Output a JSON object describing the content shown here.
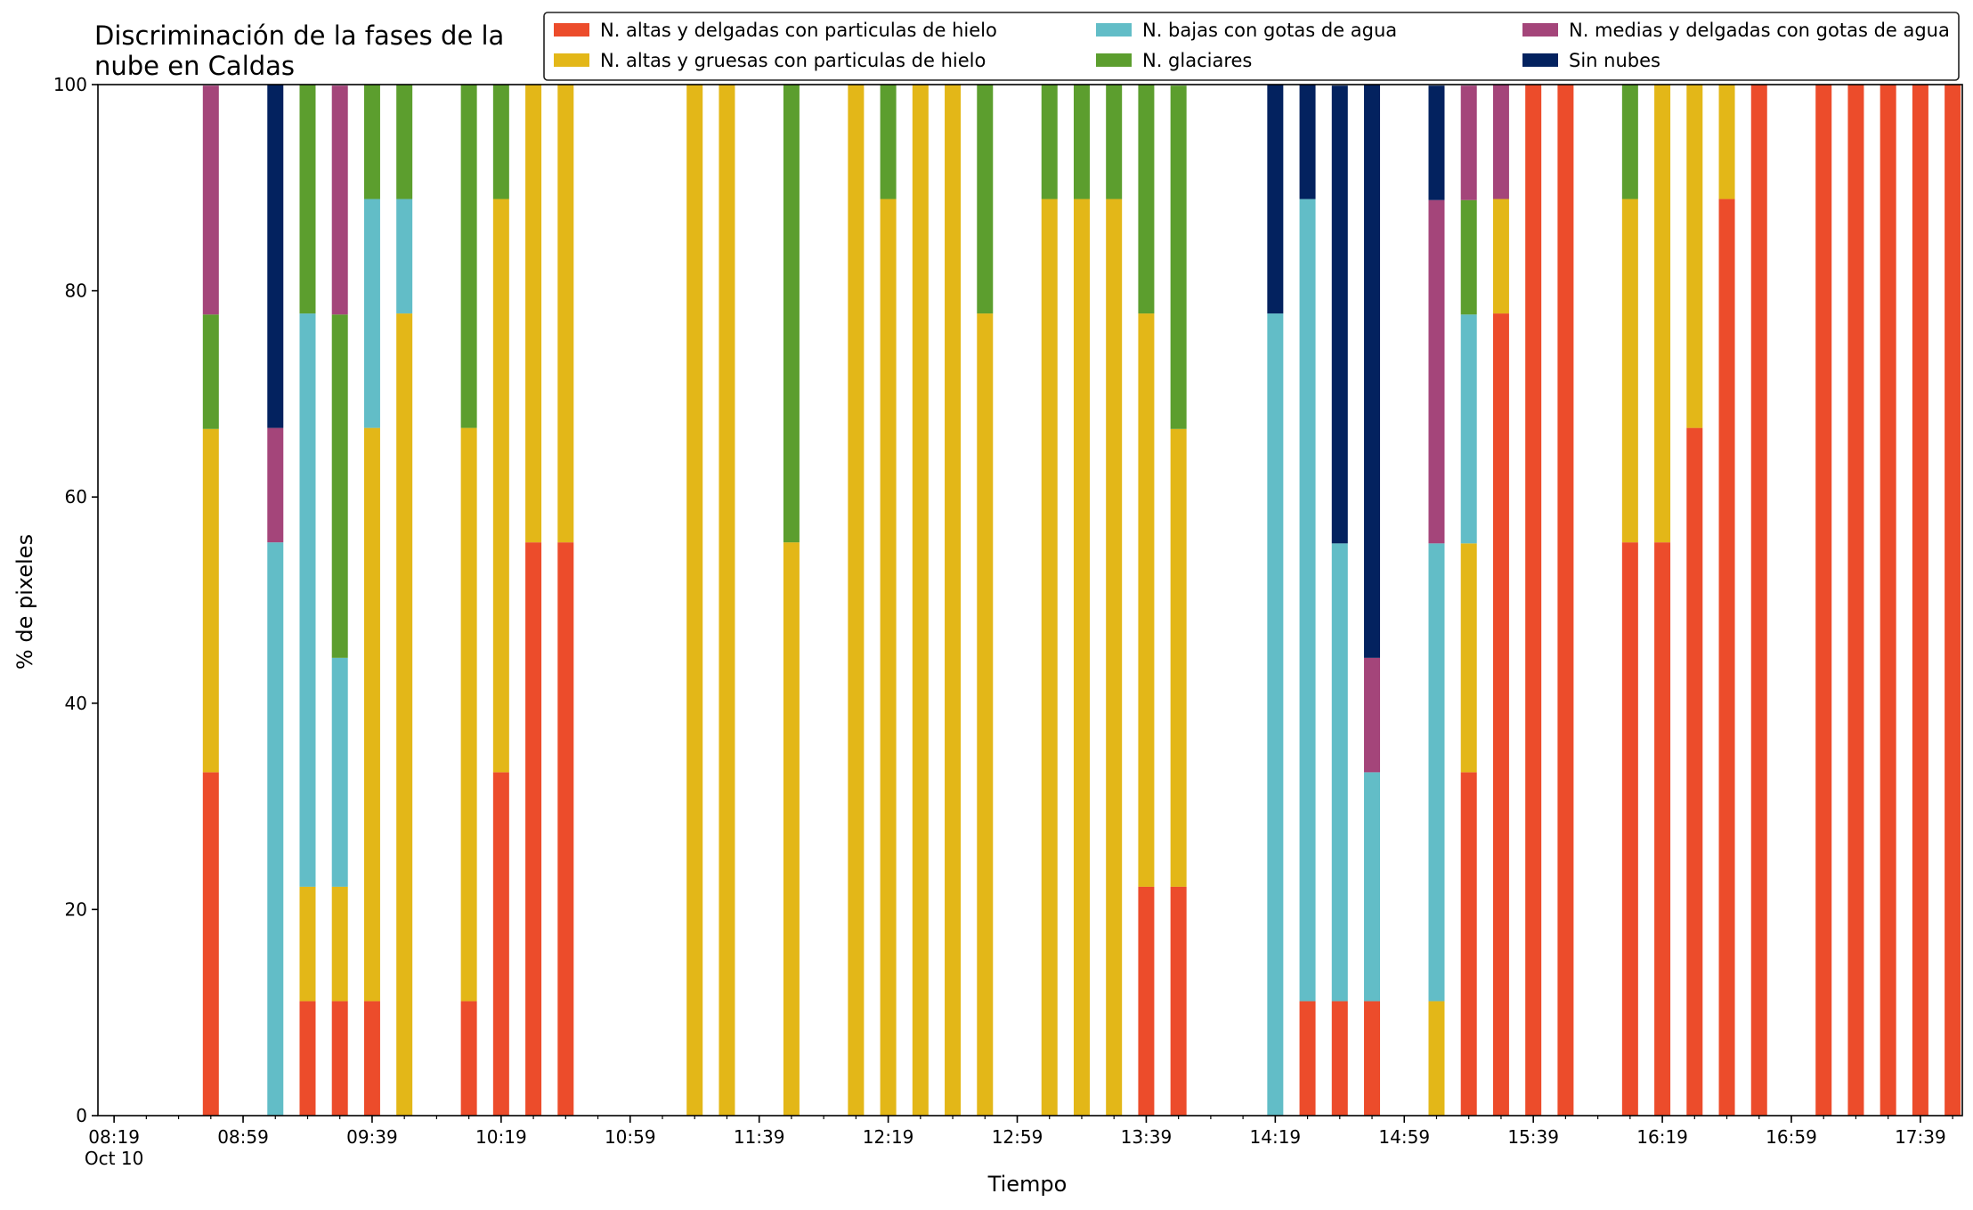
{
  "chart_data": {
    "type": "bar",
    "stacked": true,
    "title_lines": [
      "Discriminación de la fases de la",
      "nube en Caldas"
    ],
    "xlabel": "Tiempo",
    "ylabel": "% de pixeles",
    "ylim": [
      0,
      100
    ],
    "yticks": [
      0,
      20,
      40,
      60,
      80,
      100
    ],
    "x_domain": [
      "08:14",
      "17:52"
    ],
    "x_minor_tick_step_minutes": 10,
    "xticks": [
      {
        "time": "08:19",
        "label": "08:19",
        "sublabel": "Oct 10"
      },
      {
        "time": "08:59",
        "label": "08:59"
      },
      {
        "time": "09:39",
        "label": "09:39"
      },
      {
        "time": "10:19",
        "label": "10:19"
      },
      {
        "time": "10:59",
        "label": "10:59"
      },
      {
        "time": "11:39",
        "label": "11:39"
      },
      {
        "time": "12:19",
        "label": "12:19"
      },
      {
        "time": "12:59",
        "label": "12:59"
      },
      {
        "time": "13:39",
        "label": "13:39"
      },
      {
        "time": "14:19",
        "label": "14:19"
      },
      {
        "time": "14:59",
        "label": "14:59"
      },
      {
        "time": "15:39",
        "label": "15:39"
      },
      {
        "time": "16:19",
        "label": "16:19"
      },
      {
        "time": "16:59",
        "label": "16:59"
      },
      {
        "time": "17:39",
        "label": "17:39"
      }
    ],
    "grid": false,
    "legend_position": "top-right",
    "series": [
      {
        "key": "thin_ice",
        "name": "N. altas y delgadas con particulas de hielo",
        "color": "#ec4c2b"
      },
      {
        "key": "thick_ice",
        "name": "N. altas y gruesas con particulas de hielo",
        "color": "#e3b718"
      },
      {
        "key": "low_water",
        "name": "N. bajas con gotas de agua",
        "color": "#62bdc7"
      },
      {
        "key": "glacier",
        "name": "N. glaciares",
        "color": "#5c9e2e"
      },
      {
        "key": "mid_water",
        "name": "N. medias y delgadas con gotas de agua",
        "color": "#a4457a"
      },
      {
        "key": "clear",
        "name": "Sin nubes",
        "color": "#03225f"
      }
    ],
    "legend_order": [
      "thin_ice",
      "thick_ice",
      "low_water",
      "glacier",
      "mid_water",
      "clear"
    ],
    "bars": [
      {
        "time": "08:49",
        "thin_ice": 33.3,
        "thick_ice": 33.3,
        "low_water": 0,
        "glacier": 11.1,
        "mid_water": 22.2,
        "clear": 0
      },
      {
        "time": "09:09",
        "thin_ice": 0,
        "thick_ice": 0,
        "low_water": 55.6,
        "glacier": 0,
        "mid_water": 11.1,
        "clear": 33.3
      },
      {
        "time": "09:19",
        "thin_ice": 11.1,
        "thick_ice": 11.1,
        "low_water": 55.6,
        "glacier": 22.2,
        "mid_water": 0,
        "clear": 0
      },
      {
        "time": "09:29",
        "thin_ice": 11.1,
        "thick_ice": 11.1,
        "low_water": 22.2,
        "glacier": 33.3,
        "mid_water": 22.2,
        "clear": 0
      },
      {
        "time": "09:39",
        "thin_ice": 11.1,
        "thick_ice": 55.6,
        "low_water": 22.2,
        "glacier": 11.1,
        "mid_water": 0,
        "clear": 0
      },
      {
        "time": "09:49",
        "thin_ice": 0,
        "thick_ice": 77.8,
        "low_water": 11.1,
        "glacier": 11.1,
        "mid_water": 0,
        "clear": 0
      },
      {
        "time": "10:09",
        "thin_ice": 11.1,
        "thick_ice": 55.6,
        "low_water": 0,
        "glacier": 33.3,
        "mid_water": 0,
        "clear": 0
      },
      {
        "time": "10:19",
        "thin_ice": 33.3,
        "thick_ice": 55.6,
        "low_water": 0,
        "glacier": 11.1,
        "mid_water": 0,
        "clear": 0
      },
      {
        "time": "10:29",
        "thin_ice": 55.6,
        "thick_ice": 44.4,
        "low_water": 0,
        "glacier": 0,
        "mid_water": 0,
        "clear": 0
      },
      {
        "time": "10:39",
        "thin_ice": 55.6,
        "thick_ice": 44.4,
        "low_water": 0,
        "glacier": 0,
        "mid_water": 0,
        "clear": 0
      },
      {
        "time": "11:19",
        "thin_ice": 0,
        "thick_ice": 100,
        "low_water": 0,
        "glacier": 0,
        "mid_water": 0,
        "clear": 0
      },
      {
        "time": "11:29",
        "thin_ice": 0,
        "thick_ice": 100,
        "low_water": 0,
        "glacier": 0,
        "mid_water": 0,
        "clear": 0
      },
      {
        "time": "11:49",
        "thin_ice": 0,
        "thick_ice": 55.6,
        "low_water": 0,
        "glacier": 44.4,
        "mid_water": 0,
        "clear": 0
      },
      {
        "time": "12:09",
        "thin_ice": 0,
        "thick_ice": 100,
        "low_water": 0,
        "glacier": 0,
        "mid_water": 0,
        "clear": 0
      },
      {
        "time": "12:19",
        "thin_ice": 0,
        "thick_ice": 88.9,
        "low_water": 0,
        "glacier": 11.1,
        "mid_water": 0,
        "clear": 0
      },
      {
        "time": "12:29",
        "thin_ice": 0,
        "thick_ice": 100,
        "low_water": 0,
        "glacier": 0,
        "mid_water": 0,
        "clear": 0
      },
      {
        "time": "12:39",
        "thin_ice": 0,
        "thick_ice": 100,
        "low_water": 0,
        "glacier": 0,
        "mid_water": 0,
        "clear": 0
      },
      {
        "time": "12:49",
        "thin_ice": 0,
        "thick_ice": 77.8,
        "low_water": 0,
        "glacier": 22.2,
        "mid_water": 0,
        "clear": 0
      },
      {
        "time": "13:09",
        "thin_ice": 0,
        "thick_ice": 88.9,
        "low_water": 0,
        "glacier": 11.1,
        "mid_water": 0,
        "clear": 0
      },
      {
        "time": "13:19",
        "thin_ice": 0,
        "thick_ice": 88.9,
        "low_water": 0,
        "glacier": 11.1,
        "mid_water": 0,
        "clear": 0
      },
      {
        "time": "13:29",
        "thin_ice": 0,
        "thick_ice": 88.9,
        "low_water": 0,
        "glacier": 11.1,
        "mid_water": 0,
        "clear": 0
      },
      {
        "time": "13:39",
        "thin_ice": 22.2,
        "thick_ice": 55.6,
        "low_water": 0,
        "glacier": 22.2,
        "mid_water": 0,
        "clear": 0
      },
      {
        "time": "13:49",
        "thin_ice": 22.2,
        "thick_ice": 44.4,
        "low_water": 0,
        "glacier": 33.3,
        "mid_water": 0,
        "clear": 0
      },
      {
        "time": "14:19",
        "thin_ice": 0,
        "thick_ice": 0,
        "low_water": 77.8,
        "glacier": 0,
        "mid_water": 0,
        "clear": 22.2
      },
      {
        "time": "14:29",
        "thin_ice": 11.1,
        "thick_ice": 0,
        "low_water": 77.8,
        "glacier": 0,
        "mid_water": 0,
        "clear": 11.1
      },
      {
        "time": "14:39",
        "thin_ice": 11.1,
        "thick_ice": 0,
        "low_water": 44.4,
        "glacier": 0,
        "mid_water": 0,
        "clear": 44.4
      },
      {
        "time": "14:49",
        "thin_ice": 11.1,
        "thick_ice": 0,
        "low_water": 22.2,
        "glacier": 0,
        "mid_water": 11.1,
        "clear": 55.6
      },
      {
        "time": "15:09",
        "thin_ice": 0,
        "thick_ice": 11.1,
        "low_water": 44.4,
        "glacier": 0,
        "mid_water": 33.3,
        "clear": 11.1
      },
      {
        "time": "15:19",
        "thin_ice": 33.3,
        "thick_ice": 22.2,
        "low_water": 22.2,
        "glacier": 11.1,
        "mid_water": 11.1,
        "clear": 0
      },
      {
        "time": "15:29",
        "thin_ice": 77.8,
        "thick_ice": 11.1,
        "low_water": 0,
        "glacier": 0,
        "mid_water": 11.1,
        "clear": 0
      },
      {
        "time": "15:39",
        "thin_ice": 100,
        "thick_ice": 0,
        "low_water": 0,
        "glacier": 0,
        "mid_water": 0,
        "clear": 0
      },
      {
        "time": "15:49",
        "thin_ice": 100,
        "thick_ice": 0,
        "low_water": 0,
        "glacier": 0,
        "mid_water": 0,
        "clear": 0
      },
      {
        "time": "16:09",
        "thin_ice": 55.6,
        "thick_ice": 33.3,
        "low_water": 0,
        "glacier": 11.1,
        "mid_water": 0,
        "clear": 0
      },
      {
        "time": "16:19",
        "thin_ice": 55.6,
        "thick_ice": 44.4,
        "low_water": 0,
        "glacier": 0,
        "mid_water": 0,
        "clear": 0
      },
      {
        "time": "16:29",
        "thin_ice": 66.7,
        "thick_ice": 33.3,
        "low_water": 0,
        "glacier": 0,
        "mid_water": 0,
        "clear": 0
      },
      {
        "time": "16:39",
        "thin_ice": 88.9,
        "thick_ice": 11.1,
        "low_water": 0,
        "glacier": 0,
        "mid_water": 0,
        "clear": 0
      },
      {
        "time": "16:49",
        "thin_ice": 100,
        "thick_ice": 0,
        "low_water": 0,
        "glacier": 0,
        "mid_water": 0,
        "clear": 0
      },
      {
        "time": "17:09",
        "thin_ice": 100,
        "thick_ice": 0,
        "low_water": 0,
        "glacier": 0,
        "mid_water": 0,
        "clear": 0
      },
      {
        "time": "17:19",
        "thin_ice": 100,
        "thick_ice": 0,
        "low_water": 0,
        "glacier": 0,
        "mid_water": 0,
        "clear": 0
      },
      {
        "time": "17:29",
        "thin_ice": 100,
        "thick_ice": 0,
        "low_water": 0,
        "glacier": 0,
        "mid_water": 0,
        "clear": 0
      },
      {
        "time": "17:39",
        "thin_ice": 100,
        "thick_ice": 0,
        "low_water": 0,
        "glacier": 0,
        "mid_water": 0,
        "clear": 0
      },
      {
        "time": "17:49",
        "thin_ice": 100,
        "thick_ice": 0,
        "low_water": 0,
        "glacier": 0,
        "mid_water": 0,
        "clear": 0
      }
    ]
  }
}
